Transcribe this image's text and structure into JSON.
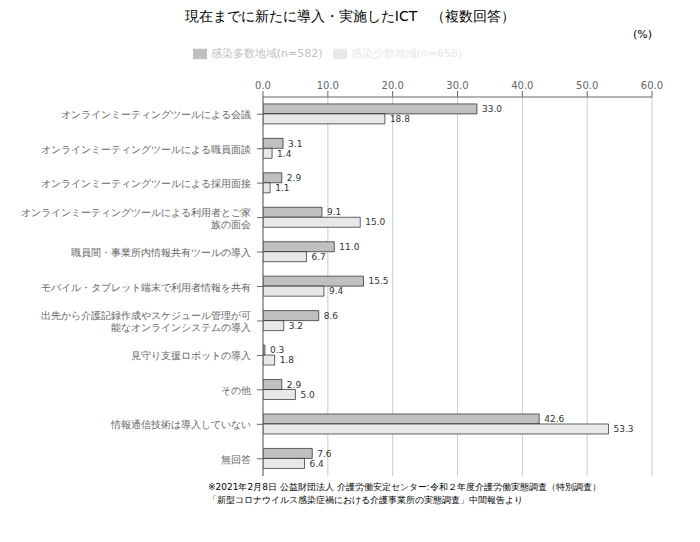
{
  "chart_data": {
    "type": "bar",
    "orientation": "horizontal",
    "title": "現在までに新たに導入・実施したICT　（複数回答）",
    "xlabel": "(%)",
    "annotations": [
      "※2021年2月8日 公益財団法人 介護労働安定センター:令和２年度介護労働実態調査（特別調査）",
      "「新型コロナウイルス感染症禍における介護事業所の実態調査」中間報告より"
    ],
    "categories": [
      "オンラインミーティングツールによる会議",
      "オンラインミーティングツールによる職員面談",
      "オンラインミーティングツールによる採用面接",
      "オンラインミーティングツールによる利用者とご家\n族の面会",
      "職員間・事業所内情報共有ツールの導入",
      "モバイル・タブレット端末で利用者情報を共有",
      "出先から介護記録作成やスケジュール管理が可\n能なオンラインシステムの導入",
      "見守り支援ロボットの導入",
      "その他",
      "情報通信技術は導入していない",
      "無回答"
    ],
    "series": [
      {
        "name": "感染多数地域(n=582)",
        "color": "#c0c0c0",
        "values": [
          33.0,
          3.1,
          2.9,
          9.1,
          11.0,
          15.5,
          8.6,
          0.3,
          2.9,
          42.6,
          7.6
        ],
        "value_labels": [
          "33.0",
          "3.1",
          "2.9",
          "9.1",
          "11.0",
          "15.5",
          "8.6",
          "0.3",
          "2.9",
          "42.6",
          "7.6"
        ]
      },
      {
        "name": "感染少数地域(n=658)",
        "color": "#e8e8e8",
        "values": [
          18.8,
          1.4,
          1.1,
          15.0,
          6.7,
          9.4,
          3.2,
          1.8,
          5.0,
          53.3,
          6.4
        ],
        "value_labels": [
          "18.8",
          "1.4",
          "1.1",
          "15.0",
          "6.7",
          "9.4",
          "3.2",
          "1.8",
          "5.0",
          "53.3",
          "6.4"
        ]
      }
    ],
    "xlim": [
      0,
      60
    ],
    "xticks": [
      {
        "value": 0,
        "label": "0.0"
      },
      {
        "value": 10,
        "label": "10.0"
      },
      {
        "value": 20,
        "label": "20.0"
      },
      {
        "value": 30,
        "label": "30.0"
      },
      {
        "value": 40,
        "label": "40.0"
      },
      {
        "value": 50,
        "label": "50.0"
      },
      {
        "value": 60,
        "label": "60.0"
      }
    ],
    "grid": true,
    "legend": "top",
    "data_labels": true
  }
}
